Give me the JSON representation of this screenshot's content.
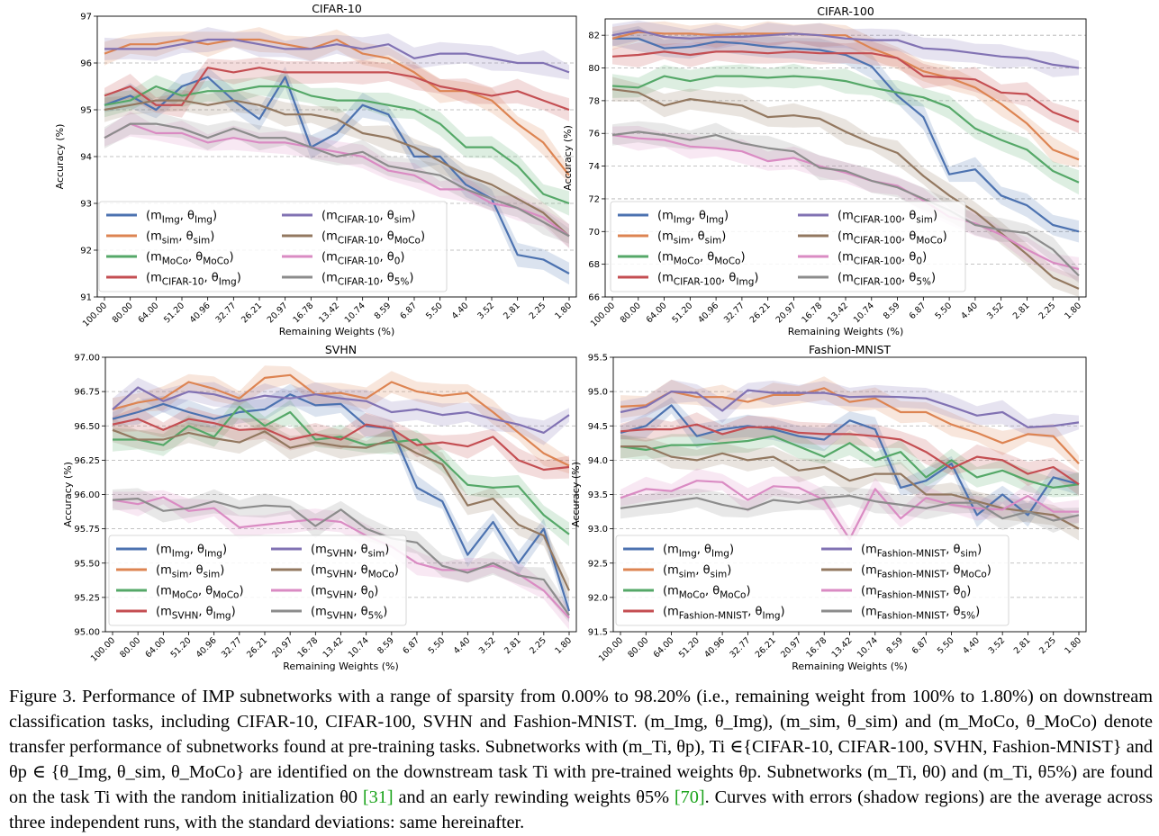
{
  "figure": {
    "caption_label": "Figure 3.",
    "caption_text": "Performance of IMP subnetworks with a range of sparsity from 0.00% to 98.20% (i.e., remaining weight from 100% to 1.80%) on downstream classification tasks, including CIFAR-10, CIFAR-100, SVHN and Fashion-MNIST. (m_Img, θ_Img), (m_sim, θ_sim) and (m_MoCo, θ_MoCo) denote transfer performance of subnetworks found at pre-training tasks. Subnetworks with (m_Ti, θp), Ti ∈{CIFAR-10, CIFAR-100, SVHN, Fashion-MNIST} and θp ∈ {θ_Img, θ_sim, θ_MoCo} are identified on the downstream task Ti with pre-trained weights θp. Subnetworks (m_Ti, θ0) and (m_Ti, θ5%) are found on the task Ti with the random initialization θ0",
    "ref1": "[31]",
    "caption_text_2": "and an early rewinding weights θ5%",
    "ref2": "[70]",
    "caption_text_3": ". Curves with errors (shadow regions) are the average across three independent runs, with the standard deviations: same hereinafter."
  },
  "colors": {
    "blue": "#4c72b0",
    "orange": "#dd8452",
    "green": "#55a868",
    "red": "#c44e52",
    "purple": "#8172b3",
    "brown": "#937860",
    "pink": "#da8bc3",
    "gray": "#8c8c8c"
  },
  "chart_data": [
    {
      "type": "line",
      "title": "CIFAR-10",
      "xlabel": "Remaining Weights (%)",
      "ylabel": "Accuracy (%)",
      "categories": [
        "100.00",
        "80.00",
        "64.00",
        "51.20",
        "40.96",
        "32.77",
        "26.21",
        "20.97",
        "16.78",
        "13.42",
        "10.74",
        "8.59",
        "6.87",
        "5.50",
        "4.40",
        "3.52",
        "2.81",
        "2.25",
        "1.80"
      ],
      "ylim": [
        91,
        97
      ],
      "yticks": [
        "91",
        "92",
        "93",
        "94",
        "95",
        "96",
        "97"
      ],
      "grid": "horizontal-dashed",
      "legend": "bottom-left",
      "series": [
        {
          "name": "(m_Img, θ_Img)",
          "color": "blue",
          "values": [
            95.1,
            95.3,
            95.0,
            95.5,
            95.7,
            95.2,
            94.8,
            95.7,
            94.2,
            94.5,
            95.1,
            94.9,
            94.0,
            94.0,
            93.4,
            93.1,
            91.9,
            91.8,
            91.5
          ]
        },
        {
          "name": "(m_sim, θ_sim)",
          "color": "orange",
          "values": [
            96.2,
            96.4,
            96.4,
            96.5,
            96.4,
            96.5,
            96.5,
            96.4,
            96.3,
            96.5,
            96.2,
            96.1,
            95.8,
            95.4,
            95.4,
            95.2,
            94.7,
            94.3,
            93.6
          ]
        },
        {
          "name": "(m_MoCo, θ_MoCo)",
          "color": "green",
          "values": [
            95.1,
            95.2,
            95.5,
            95.3,
            95.4,
            95.4,
            95.5,
            95.5,
            95.3,
            95.2,
            95.2,
            95.1,
            95.0,
            94.7,
            94.2,
            94.2,
            93.8,
            93.2,
            93.0
          ]
        },
        {
          "name": "(m_CIFAR-10, θ_Img)",
          "color": "red",
          "values": [
            95.3,
            95.5,
            95.1,
            95.1,
            95.9,
            95.8,
            95.9,
            95.8,
            95.8,
            95.8,
            95.8,
            95.8,
            95.7,
            95.5,
            95.4,
            95.3,
            95.4,
            95.2,
            95.0
          ]
        },
        {
          "name": "(m_CIFAR-10, θ_sim)",
          "color": "purple",
          "values": [
            96.3,
            96.3,
            96.3,
            96.4,
            96.5,
            96.5,
            96.4,
            96.3,
            96.3,
            96.4,
            96.3,
            96.4,
            96.1,
            96.2,
            96.2,
            96.1,
            96.0,
            96.0,
            95.8
          ]
        },
        {
          "name": "(m_CIFAR-10, θ_MoCo)",
          "color": "brown",
          "values": [
            95.0,
            95.1,
            95.2,
            95.2,
            95.1,
            95.2,
            95.1,
            94.9,
            94.9,
            94.8,
            94.5,
            94.4,
            94.2,
            93.9,
            93.6,
            93.4,
            93.1,
            92.8,
            92.3
          ]
        },
        {
          "name": "(m_CIFAR-10, θ0)",
          "color": "pink",
          "values": [
            94.4,
            94.7,
            94.5,
            94.5,
            94.3,
            94.4,
            94.3,
            94.3,
            94.2,
            94.1,
            94.0,
            93.7,
            93.6,
            93.3,
            93.3,
            93.0,
            92.9,
            92.7,
            92.3
          ]
        },
        {
          "name": "(m_CIFAR-10, θ5%)",
          "color": "gray",
          "values": [
            94.4,
            94.7,
            94.7,
            94.6,
            94.4,
            94.6,
            94.4,
            94.4,
            94.2,
            94.0,
            94.1,
            93.8,
            93.7,
            93.6,
            93.3,
            93.1,
            92.9,
            92.6,
            92.3
          ]
        }
      ]
    },
    {
      "type": "line",
      "title": "CIFAR-100",
      "xlabel": "Remaining Weights (%)",
      "ylabel": "Accuracy (%)",
      "categories": [
        "100.00",
        "80.00",
        "64.00",
        "51.20",
        "40.96",
        "32.77",
        "26.21",
        "20.97",
        "16.78",
        "13.42",
        "10.74",
        "8.59",
        "6.87",
        "5.50",
        "4.40",
        "3.52",
        "2.81",
        "2.25",
        "1.80"
      ],
      "ylim": [
        66,
        83
      ],
      "yticks": [
        "66",
        "68",
        "70",
        "72",
        "74",
        "76",
        "78",
        "80",
        "82"
      ],
      "grid": "horizontal-dashed",
      "legend": "bottom-left",
      "series": [
        {
          "name": "(m_Img, θ_Img)",
          "color": "blue",
          "values": [
            81.8,
            81.8,
            81.2,
            81.3,
            81.6,
            81.5,
            81.3,
            81.2,
            81.1,
            80.8,
            80.1,
            78.3,
            77.0,
            73.5,
            73.8,
            72.2,
            71.6,
            70.4,
            70.0
          ]
        },
        {
          "name": "(m_sim, θ_sim)",
          "color": "orange",
          "values": [
            81.8,
            82.2,
            82.1,
            82.1,
            82.0,
            82.1,
            82.1,
            82.1,
            82.0,
            82.0,
            81.2,
            80.6,
            79.8,
            79.4,
            78.8,
            77.8,
            76.6,
            75.0,
            74.4
          ]
        },
        {
          "name": "(m_MoCo, θ_MoCo)",
          "color": "green",
          "values": [
            78.9,
            78.8,
            79.5,
            79.2,
            79.5,
            79.5,
            79.4,
            79.5,
            79.4,
            79.2,
            78.8,
            78.5,
            78.2,
            77.6,
            76.3,
            75.6,
            75.0,
            73.7,
            73.0
          ]
        },
        {
          "name": "(m_CIFAR-100, θ_Img)",
          "color": "red",
          "values": [
            80.7,
            80.8,
            81.0,
            80.8,
            81.0,
            81.0,
            80.9,
            81.0,
            80.9,
            80.9,
            80.9,
            80.6,
            79.5,
            79.4,
            79.3,
            78.5,
            78.4,
            77.3,
            76.7
          ]
        },
        {
          "name": "(m_CIFAR-100, θ_sim)",
          "color": "purple",
          "values": [
            82.0,
            82.3,
            81.9,
            81.8,
            81.9,
            81.9,
            82.0,
            82.1,
            82.0,
            81.8,
            81.7,
            81.7,
            81.2,
            81.1,
            80.9,
            80.7,
            80.6,
            80.2,
            80.0
          ]
        },
        {
          "name": "(m_CIFAR-100, θ_MoCo)",
          "color": "brown",
          "values": [
            78.7,
            78.5,
            77.7,
            78.1,
            77.9,
            77.7,
            77.0,
            77.1,
            76.9,
            76.1,
            75.4,
            74.8,
            73.4,
            72.2,
            71.2,
            69.9,
            68.6,
            67.2,
            66.5
          ]
        },
        {
          "name": "(m_CIFAR-100, θ0)",
          "color": "pink",
          "values": [
            75.9,
            75.7,
            75.6,
            75.2,
            75.1,
            74.9,
            74.3,
            74.5,
            74.0,
            73.6,
            73.1,
            72.8,
            71.9,
            70.9,
            70.5,
            69.8,
            68.9,
            68.1,
            67.7
          ]
        },
        {
          "name": "(m_CIFAR-100, θ5%)",
          "color": "gray",
          "values": [
            75.9,
            76.1,
            75.9,
            75.6,
            75.9,
            75.4,
            75.1,
            74.9,
            73.9,
            73.7,
            73.1,
            72.7,
            72.0,
            71.3,
            70.4,
            70.1,
            69.9,
            68.9,
            67.3
          ]
        }
      ]
    },
    {
      "type": "line",
      "title": "SVHN",
      "xlabel": "Remaining Weights (%)",
      "ylabel": "Accuracy (%)",
      "categories": [
        "100.00",
        "80.00",
        "64.00",
        "51.20",
        "40.96",
        "32.77",
        "26.21",
        "20.97",
        "16.78",
        "13.42",
        "10.74",
        "8.59",
        "6.87",
        "5.50",
        "4.40",
        "3.52",
        "2.81",
        "2.25",
        "1.80"
      ],
      "ylim": [
        95.0,
        97.0
      ],
      "yticks": [
        "95.00",
        "95.25",
        "95.50",
        "95.75",
        "96.00",
        "96.25",
        "96.50",
        "96.75",
        "97.00"
      ],
      "grid": "horizontal-dashed",
      "legend": "bottom-left",
      "series": [
        {
          "name": "(m_Img, θ_Img)",
          "color": "blue",
          "values": [
            96.55,
            96.6,
            96.66,
            96.6,
            96.55,
            96.6,
            96.62,
            96.73,
            96.65,
            96.66,
            96.5,
            96.48,
            96.05,
            95.95,
            95.56,
            95.8,
            95.5,
            95.75,
            95.15
          ]
        },
        {
          "name": "(m_sim, θ_sim)",
          "color": "orange",
          "values": [
            96.62,
            96.67,
            96.7,
            96.82,
            96.77,
            96.7,
            96.85,
            96.87,
            96.73,
            96.74,
            96.7,
            96.82,
            96.75,
            96.72,
            96.74,
            96.6,
            96.45,
            96.3,
            96.21
          ]
        },
        {
          "name": "(m_MoCo, θ_MoCo)",
          "color": "green",
          "values": [
            96.4,
            96.4,
            96.36,
            96.5,
            96.42,
            96.64,
            96.5,
            96.6,
            96.4,
            96.42,
            96.36,
            96.38,
            96.4,
            96.25,
            96.07,
            96.05,
            96.06,
            95.85,
            95.71
          ]
        },
        {
          "name": "(m_SVHN, θ_Img)",
          "color": "red",
          "values": [
            96.51,
            96.55,
            96.47,
            96.55,
            96.52,
            96.47,
            96.48,
            96.4,
            96.44,
            96.4,
            96.51,
            96.48,
            96.36,
            96.38,
            96.35,
            96.42,
            96.25,
            96.18,
            96.2
          ]
        },
        {
          "name": "(m_SVHN, θ_sim)",
          "color": "purple",
          "values": [
            96.62,
            96.78,
            96.68,
            96.75,
            96.73,
            96.68,
            96.72,
            96.7,
            96.73,
            96.7,
            96.68,
            96.6,
            96.62,
            96.58,
            96.6,
            96.55,
            96.51,
            96.45,
            96.58
          ]
        },
        {
          "name": "(m_SVHN, θ_MoCo)",
          "color": "brown",
          "values": [
            96.47,
            96.4,
            96.4,
            96.45,
            96.41,
            96.38,
            96.46,
            96.34,
            96.38,
            96.35,
            96.34,
            96.4,
            96.3,
            96.22,
            95.92,
            95.97,
            95.78,
            95.7,
            95.3
          ]
        },
        {
          "name": "(m_SVHN, θ0)",
          "color": "pink",
          "values": [
            95.96,
            95.93,
            95.98,
            95.88,
            95.9,
            95.76,
            95.78,
            95.8,
            95.82,
            95.8,
            95.7,
            95.62,
            95.5,
            95.45,
            95.45,
            95.48,
            95.42,
            95.3,
            95.1
          ]
        },
        {
          "name": "(m_SVHN, θ5%)",
          "color": "gray",
          "values": [
            95.96,
            95.97,
            95.88,
            95.9,
            95.95,
            95.9,
            95.92,
            95.91,
            95.77,
            95.89,
            95.75,
            95.68,
            95.65,
            95.48,
            95.43,
            95.5,
            95.41,
            95.38,
            95.12
          ]
        }
      ]
    },
    {
      "type": "line",
      "title": "Fashion-MNIST",
      "xlabel": "Remaining Weights (%)",
      "ylabel": "Accuracy (%)",
      "categories": [
        "100.00",
        "80.00",
        "64.00",
        "51.20",
        "40.96",
        "32.77",
        "26.21",
        "20.97",
        "16.78",
        "13.42",
        "10.74",
        "8.59",
        "6.87",
        "5.50",
        "4.40",
        "3.52",
        "2.81",
        "2.25",
        "1.80"
      ],
      "ylim": [
        91.5,
        95.5
      ],
      "yticks": [
        "91.5",
        "92.0",
        "92.5",
        "93.0",
        "93.5",
        "94.0",
        "94.5",
        "95.0",
        "95.5"
      ],
      "grid": "horizontal-dashed",
      "legend": "bottom-left",
      "series": [
        {
          "name": "(m_Img, θ_Img)",
          "color": "blue",
          "values": [
            94.4,
            94.5,
            94.8,
            94.35,
            94.45,
            94.5,
            94.45,
            94.35,
            94.3,
            94.58,
            94.45,
            93.6,
            93.7,
            93.95,
            93.2,
            93.5,
            93.2,
            93.75,
            93.65
          ]
        },
        {
          "name": "(m_sim, θ_sim)",
          "color": "orange",
          "values": [
            94.78,
            94.8,
            95.0,
            94.92,
            94.92,
            94.85,
            94.95,
            94.95,
            95.05,
            94.85,
            94.9,
            94.7,
            94.7,
            94.52,
            94.4,
            94.25,
            94.38,
            94.35,
            93.95
          ]
        },
        {
          "name": "(m_MoCo, θ_MoCo)",
          "color": "green",
          "values": [
            94.2,
            94.15,
            94.22,
            94.22,
            94.25,
            94.28,
            94.35,
            94.2,
            94.05,
            94.25,
            94.0,
            94.12,
            93.75,
            94.0,
            93.75,
            93.85,
            93.7,
            93.6,
            93.65
          ]
        },
        {
          "name": "(m_Fashion-MNIST, θ_Img)",
          "color": "red",
          "values": [
            94.42,
            94.45,
            94.45,
            94.52,
            94.38,
            94.48,
            94.48,
            94.4,
            94.38,
            94.38,
            94.35,
            94.3,
            94.12,
            93.88,
            94.05,
            94.0,
            93.8,
            93.9,
            93.65
          ]
        },
        {
          "name": "(m_Fashion-MNIST, θ_sim)",
          "color": "purple",
          "values": [
            94.7,
            94.78,
            95.0,
            94.98,
            94.72,
            95.02,
            94.98,
            94.98,
            94.98,
            94.92,
            94.93,
            94.92,
            94.9,
            94.78,
            94.65,
            94.7,
            94.48,
            94.5,
            94.55
          ]
        },
        {
          "name": "(m_Fashion-MNIST, θ_MoCo)",
          "color": "brown",
          "values": [
            94.2,
            94.2,
            94.05,
            94.0,
            94.1,
            94.0,
            94.05,
            93.85,
            93.9,
            93.7,
            93.8,
            93.8,
            93.5,
            93.5,
            93.4,
            93.3,
            93.25,
            93.2,
            93.0
          ]
        },
        {
          "name": "(m_Fashion-MNIST, θ0)",
          "color": "pink",
          "values": [
            93.45,
            93.58,
            93.55,
            93.7,
            93.68,
            93.42,
            93.62,
            93.6,
            93.42,
            92.85,
            93.58,
            93.15,
            93.45,
            93.35,
            93.3,
            93.28,
            93.48,
            93.25,
            93.25
          ]
        },
        {
          "name": "(m_Fashion-MNIST, θ5%)",
          "color": "gray",
          "values": [
            93.3,
            93.35,
            93.4,
            93.45,
            93.35,
            93.28,
            93.42,
            93.38,
            93.45,
            93.48,
            93.4,
            93.35,
            93.3,
            93.38,
            93.38,
            93.15,
            93.25,
            93.12,
            93.2
          ]
        }
      ]
    }
  ]
}
